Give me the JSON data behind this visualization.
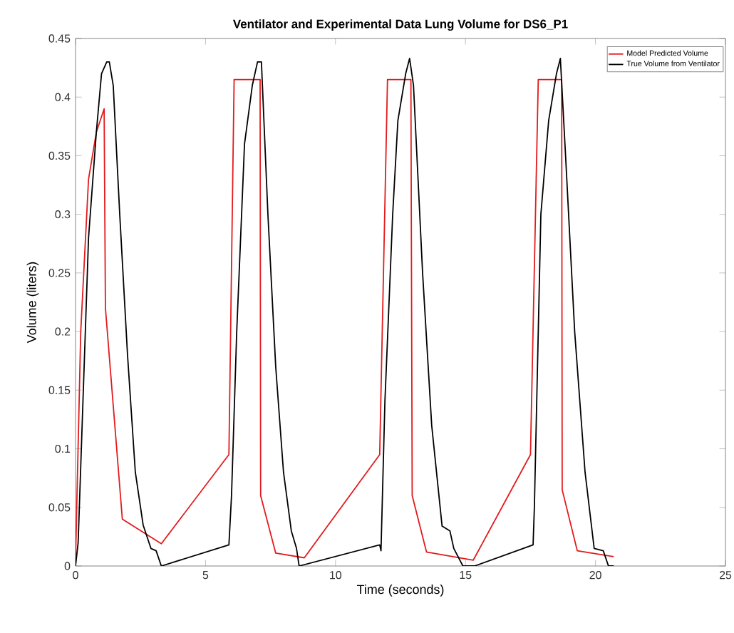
{
  "chart_data": {
    "type": "line",
    "title": "Ventilator and Experimental Data Lung Volume for DS6_P1",
    "xlabel": "Time (seconds)",
    "ylabel": "Volume (liters)",
    "xlim": [
      0,
      25
    ],
    "ylim": [
      0,
      0.45
    ],
    "xticks": [
      0,
      5,
      10,
      15,
      20,
      25
    ],
    "yticks": [
      0,
      0.05,
      0.1,
      0.15,
      0.2,
      0.25,
      0.3,
      0.35,
      0.4,
      0.45
    ],
    "grid": false,
    "legend": "top right",
    "line_style": "solid",
    "series": [
      {
        "name": "Model Predicted Volume",
        "color": "#e31a1c",
        "x": [
          0,
          0.2,
          0.5,
          0.8,
          1.1,
          1.15,
          1.8,
          3.3,
          5.9,
          6.1,
          7.1,
          7.12,
          7.7,
          8.8,
          11.7,
          12.0,
          12.9,
          12.95,
          13.5,
          15.3,
          17.5,
          17.8,
          18.7,
          18.72,
          19.3,
          20.7
        ],
        "values": [
          0.005,
          0.2,
          0.33,
          0.37,
          0.39,
          0.22,
          0.04,
          0.019,
          0.095,
          0.415,
          0.415,
          0.06,
          0.011,
          0.007,
          0.095,
          0.415,
          0.415,
          0.06,
          0.012,
          0.005,
          0.095,
          0.415,
          0.415,
          0.065,
          0.013,
          0.008
        ]
      },
      {
        "name": "True Volume from Ventilator",
        "color": "#000000",
        "x": [
          0,
          0.1,
          0.3,
          0.5,
          0.8,
          1.0,
          1.2,
          1.3,
          1.45,
          1.7,
          2.0,
          2.3,
          2.6,
          2.9,
          3.1,
          3.3,
          5.9,
          6.0,
          6.2,
          6.5,
          6.8,
          7.0,
          7.15,
          7.4,
          7.7,
          8.0,
          8.3,
          8.5,
          8.6,
          11.7,
          11.75,
          11.9,
          12.2,
          12.4,
          12.7,
          12.85,
          13.0,
          13.35,
          13.7,
          14.1,
          14.4,
          14.55,
          14.9,
          15.35,
          17.6,
          17.65,
          17.9,
          18.2,
          18.5,
          18.65,
          18.85,
          19.2,
          19.6,
          19.95,
          20.3,
          20.5,
          20.7
        ],
        "values": [
          0,
          0.02,
          0.15,
          0.28,
          0.37,
          0.42,
          0.43,
          0.43,
          0.41,
          0.3,
          0.18,
          0.08,
          0.035,
          0.015,
          0.013,
          0,
          0.018,
          0.06,
          0.2,
          0.36,
          0.41,
          0.43,
          0.43,
          0.3,
          0.17,
          0.08,
          0.03,
          0.015,
          0,
          0.018,
          0.013,
          0.14,
          0.3,
          0.38,
          0.42,
          0.433,
          0.41,
          0.25,
          0.12,
          0.034,
          0.03,
          0.015,
          0,
          0,
          0.018,
          0.05,
          0.3,
          0.38,
          0.42,
          0.433,
          0.35,
          0.2,
          0.08,
          0.015,
          0.013,
          0,
          0
        ]
      }
    ]
  }
}
